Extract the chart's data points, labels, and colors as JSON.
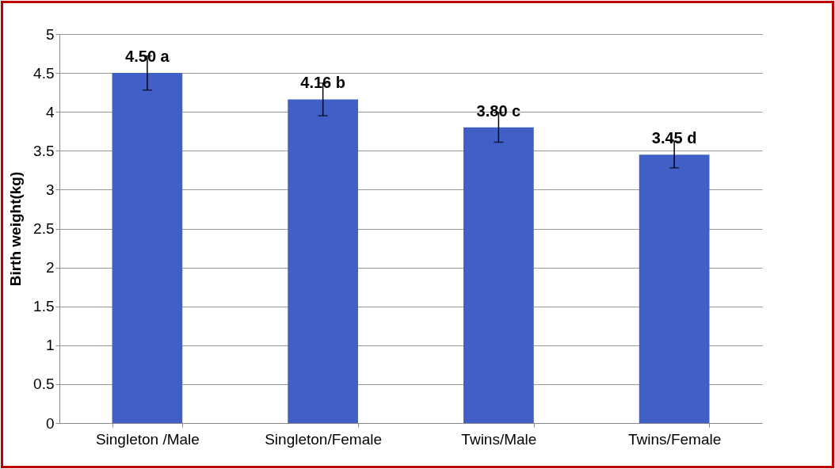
{
  "chart_data": {
    "type": "bar",
    "ylabel": "Birth weight(kg)",
    "categories": [
      "Singleton /Male",
      "Singleton/Female",
      "Twins/Male",
      "Twins/Female"
    ],
    "values": [
      4.5,
      4.16,
      3.8,
      3.45
    ],
    "errors": [
      0.22,
      0.21,
      0.19,
      0.17
    ],
    "value_labels": [
      "4.50 a",
      "4.16 b",
      "3.80 c",
      "3.45 d"
    ],
    "color": "#4060c8",
    "ylim": [
      0,
      5
    ],
    "yticks": [
      0,
      0.5,
      1,
      1.5,
      2,
      2.5,
      3,
      3.5,
      4,
      4.5,
      5
    ],
    "grid": "y"
  }
}
